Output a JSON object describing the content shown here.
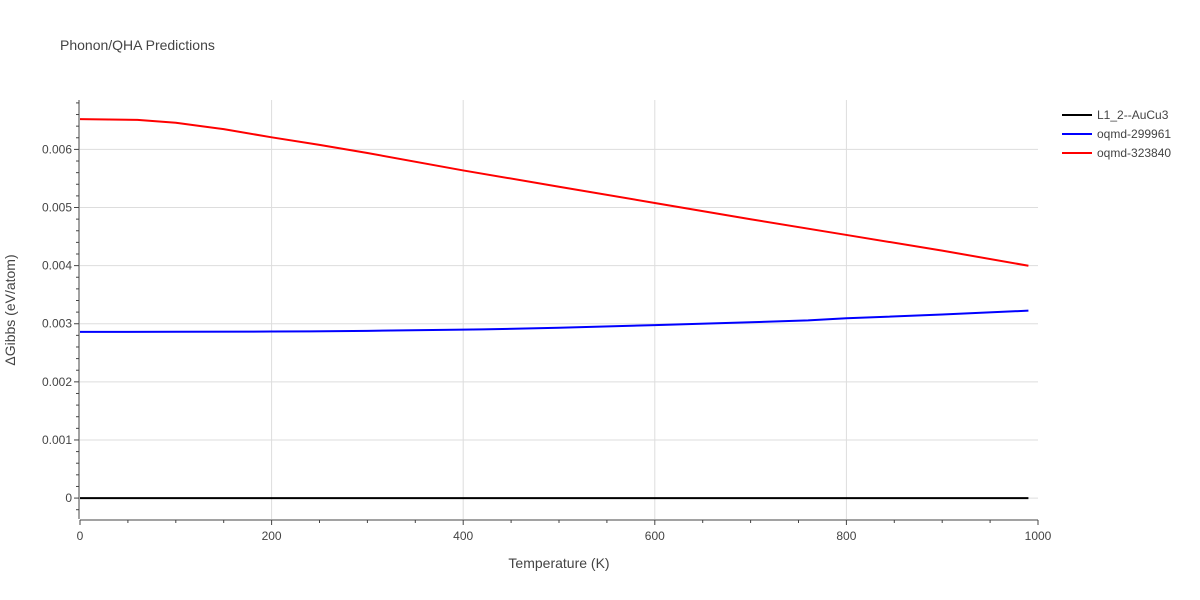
{
  "chart_data": {
    "type": "line",
    "title": "Phonon/QHA Predictions",
    "xlabel": "Temperature (K)",
    "ylabel": "ΔGibbs (eV/atom)",
    "xlim": [
      0,
      1000
    ],
    "ylim": [
      -0.00036,
      0.00685
    ],
    "xticks": [
      0,
      200,
      400,
      600,
      800,
      1000
    ],
    "yticks": [
      0,
      0.001,
      0.002,
      0.003,
      0.004,
      0.005,
      0.006
    ],
    "xtick_labels": [
      "0",
      "200",
      "400",
      "600",
      "800",
      "1000"
    ],
    "ytick_labels": [
      "0",
      "0.001",
      "0.002",
      "0.003",
      "0.004",
      "0.005",
      "0.006"
    ],
    "grid": true,
    "legend_position": "top-right",
    "series": [
      {
        "name": "L1_2--AuCu3",
        "color": "#000000",
        "x": [
          0,
          990
        ],
        "y": [
          0,
          0
        ]
      },
      {
        "name": "oqmd-299961",
        "color": "#0000ff",
        "x": [
          0,
          100,
          200,
          240,
          300,
          400,
          420,
          500,
          600,
          700,
          760,
          800,
          900,
          990
        ],
        "y": [
          0.00286,
          0.002862,
          0.002866,
          0.002868,
          0.002878,
          0.002898,
          0.002902,
          0.002932,
          0.002976,
          0.003026,
          0.003058,
          0.003094,
          0.003158,
          0.003225
        ]
      },
      {
        "name": "oqmd-323840",
        "color": "#ff0000",
        "x": [
          0,
          60,
          100,
          150,
          200,
          250,
          300,
          400,
          500,
          600,
          700,
          800,
          900,
          990
        ],
        "y": [
          0.00652,
          0.006508,
          0.006458,
          0.006348,
          0.006208,
          0.006078,
          0.005938,
          0.005638,
          0.005358,
          0.005078,
          0.004798,
          0.004528,
          0.004258,
          0.003998
        ]
      }
    ]
  }
}
